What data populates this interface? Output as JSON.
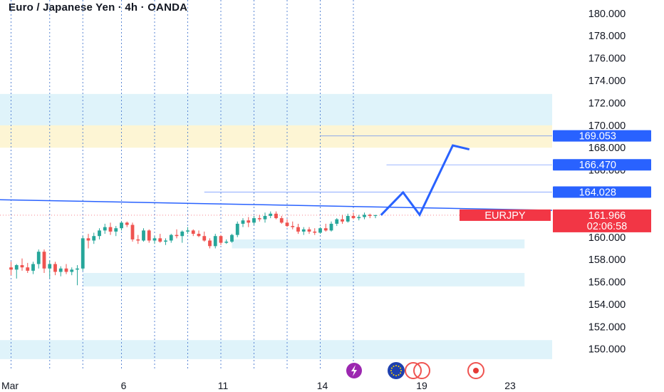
{
  "chart_data": {
    "type": "candlestick",
    "title": "Euro / Japanese Yen · 4h · OANDA",
    "symbol": "EURJPY",
    "y_ticks": [
      "180.000",
      "178.000",
      "176.000",
      "174.000",
      "172.000",
      "170.000",
      "168.000",
      "166.000",
      "164.000",
      "162.000",
      "160.000",
      "158.000",
      "156.000",
      "154.000",
      "152.000",
      "150.000"
    ],
    "x_ticks": [
      {
        "label": "Mar",
        "x": 0
      },
      {
        "label": "6",
        "x": 20
      },
      {
        "label": "11",
        "x": 38
      },
      {
        "label": "14",
        "x": 56
      },
      {
        "label": "19",
        "x": 74
      },
      {
        "label": "23",
        "x": 90
      }
    ],
    "ylim": [
      148.2,
      181.2
    ],
    "xlim": [
      -2,
      98
    ],
    "candles": [
      [
        0,
        157.3,
        157.8,
        156.6,
        157.1
      ],
      [
        1,
        157.1,
        157.6,
        156.3,
        157.5
      ],
      [
        2,
        157.5,
        158.1,
        157.0,
        157.3
      ],
      [
        3,
        157.3,
        157.7,
        156.8,
        157.0
      ],
      [
        4,
        157.0,
        157.8,
        156.7,
        157.6
      ],
      [
        5,
        157.6,
        158.9,
        157.2,
        158.7
      ],
      [
        6,
        158.7,
        158.9,
        156.8,
        157.2
      ],
      [
        7,
        157.2,
        157.9,
        156.3,
        157.6
      ],
      [
        8,
        157.6,
        157.8,
        156.6,
        156.9
      ],
      [
        9,
        156.9,
        157.4,
        156.5,
        157.2
      ],
      [
        10,
        157.2,
        157.6,
        156.7,
        156.9
      ],
      [
        11,
        156.9,
        157.3,
        156.6,
        157.1
      ],
      [
        12,
        157.1,
        157.5,
        155.7,
        157.2
      ],
      [
        13,
        157.2,
        160.1,
        157.0,
        159.9
      ],
      [
        14,
        159.9,
        160.3,
        159.0,
        159.7
      ],
      [
        15,
        159.7,
        160.4,
        159.4,
        160.1
      ],
      [
        16,
        160.1,
        160.8,
        159.8,
        160.6
      ],
      [
        17,
        160.6,
        161.2,
        160.3,
        160.9
      ],
      [
        18,
        160.9,
        161.3,
        160.2,
        160.5
      ],
      [
        19,
        160.5,
        161.0,
        160.1,
        160.8
      ],
      [
        20,
        160.8,
        161.4,
        160.6,
        161.3
      ],
      [
        21,
        161.3,
        161.4,
        160.9,
        161.1
      ],
      [
        22,
        161.1,
        161.3,
        159.6,
        159.8
      ],
      [
        23,
        159.8,
        160.2,
        159.4,
        159.7
      ],
      [
        24,
        159.7,
        160.8,
        159.6,
        160.6
      ],
      [
        25,
        160.6,
        160.7,
        159.5,
        159.7
      ],
      [
        26,
        159.7,
        160.1,
        159.4,
        159.9
      ],
      [
        27,
        159.9,
        160.3,
        159.5,
        159.6
      ],
      [
        28,
        159.6,
        159.9,
        159.3,
        159.7
      ],
      [
        29,
        159.7,
        160.3,
        159.5,
        160.2
      ],
      [
        30,
        160.2,
        160.7,
        159.9,
        160.1
      ],
      [
        31,
        160.1,
        160.6,
        159.5,
        160.5
      ],
      [
        32,
        160.5,
        160.9,
        160.3,
        160.6
      ],
      [
        33,
        160.6,
        160.7,
        160.1,
        160.3
      ],
      [
        34,
        160.3,
        160.6,
        160.0,
        160.1
      ],
      [
        35,
        160.1,
        160.5,
        159.6,
        159.7
      ],
      [
        36,
        159.7,
        159.9,
        159.0,
        159.2
      ],
      [
        37,
        159.2,
        160.3,
        159.0,
        160.1
      ],
      [
        38,
        160.1,
        160.2,
        159.3,
        159.5
      ],
      [
        39,
        159.5,
        159.8,
        159.4,
        159.6
      ],
      [
        40,
        159.6,
        160.3,
        159.5,
        160.2
      ],
      [
        41,
        160.2,
        161.4,
        160.0,
        161.2
      ],
      [
        42,
        161.2,
        161.7,
        160.9,
        161.5
      ],
      [
        43,
        161.5,
        161.8,
        160.9,
        161.3
      ],
      [
        44,
        161.3,
        161.9,
        161.1,
        161.7
      ],
      [
        45,
        161.7,
        162.0,
        161.4,
        161.6
      ],
      [
        46,
        161.6,
        162.2,
        161.3,
        161.9
      ],
      [
        47,
        161.9,
        162.3,
        161.7,
        162.1
      ],
      [
        48,
        162.1,
        162.3,
        161.6,
        161.7
      ],
      [
        49,
        161.7,
        161.9,
        161.2,
        161.3
      ],
      [
        50,
        161.3,
        161.6,
        160.9,
        161.0
      ],
      [
        51,
        161.0,
        161.4,
        160.7,
        160.9
      ],
      [
        52,
        160.9,
        161.2,
        160.3,
        160.5
      ],
      [
        53,
        160.5,
        160.9,
        160.2,
        160.7
      ],
      [
        54,
        160.7,
        160.9,
        160.3,
        160.5
      ],
      [
        55,
        160.5,
        160.8,
        160.2,
        160.4
      ],
      [
        56,
        160.4,
        160.9,
        160.3,
        160.8
      ],
      [
        57,
        160.8,
        161.2,
        160.5,
        160.6
      ],
      [
        58,
        160.6,
        161.4,
        160.5,
        161.2
      ],
      [
        59,
        161.2,
        161.7,
        161.0,
        161.6
      ],
      [
        60,
        161.6,
        162.0,
        161.2,
        161.4
      ],
      [
        61,
        161.4,
        162.1,
        161.3,
        161.9
      ],
      [
        62,
        161.9,
        162.2,
        161.6,
        161.7
      ],
      [
        63,
        161.7,
        162.0,
        161.5,
        161.8
      ],
      [
        64,
        161.8,
        162.2,
        161.6,
        162.0
      ],
      [
        65,
        162.0,
        162.1,
        161.7,
        161.9
      ],
      [
        66,
        161.9,
        162.0,
        161.7,
        161.97
      ]
    ],
    "projection": [
      [
        67,
        161.97
      ],
      [
        71,
        164.0
      ],
      [
        74,
        162.0
      ],
      [
        80,
        168.2
      ],
      [
        83,
        167.85
      ]
    ],
    "resistance_line": [
      [
        -2,
        163.35
      ],
      [
        98,
        162.4
      ]
    ],
    "zones": [
      {
        "y1": 172.8,
        "y2": 169.8,
        "x1": -2,
        "x2": 98,
        "color": "#dff3fa"
      },
      {
        "y1": 170.0,
        "y2": 168.0,
        "x1": -2,
        "x2": 98,
        "color": "#fdf5d4"
      },
      {
        "y1": 159.8,
        "y2": 159.0,
        "x1": 40,
        "x2": 93,
        "color": "#dff3fa"
      },
      {
        "y1": 156.8,
        "y2": 155.6,
        "x1": 13,
        "x2": 93,
        "color": "#dff3fa"
      },
      {
        "y1": 150.8,
        "y2": 149.1,
        "x1": -2,
        "x2": 98,
        "color": "#dff3fa"
      }
    ],
    "horizontal_levels": [
      {
        "value": 169.053,
        "label": "169.053",
        "x1": 56
      },
      {
        "value": 166.47,
        "label": "166.470",
        "x1": 68
      },
      {
        "value": 164.028,
        "label": "164.028",
        "x1": 35
      }
    ],
    "current_price": {
      "value": 161.966,
      "label": "161.966",
      "countdown": "02:06:58"
    },
    "vertical_lines": [
      0,
      7,
      13,
      20,
      26,
      32,
      38,
      44,
      50,
      56,
      62
    ],
    "grid": false
  },
  "colors": {
    "up": "#26a69a",
    "down": "#ef5350",
    "trend": "#2962ff",
    "projection": "#2962ff",
    "level_tag": "#2962ff",
    "symbol_tag": "#f23645",
    "vline": "#5b87d4"
  },
  "bottom_icons": [
    "lightning-icon",
    "eu-flag-icon",
    "japan-flag-icon"
  ]
}
